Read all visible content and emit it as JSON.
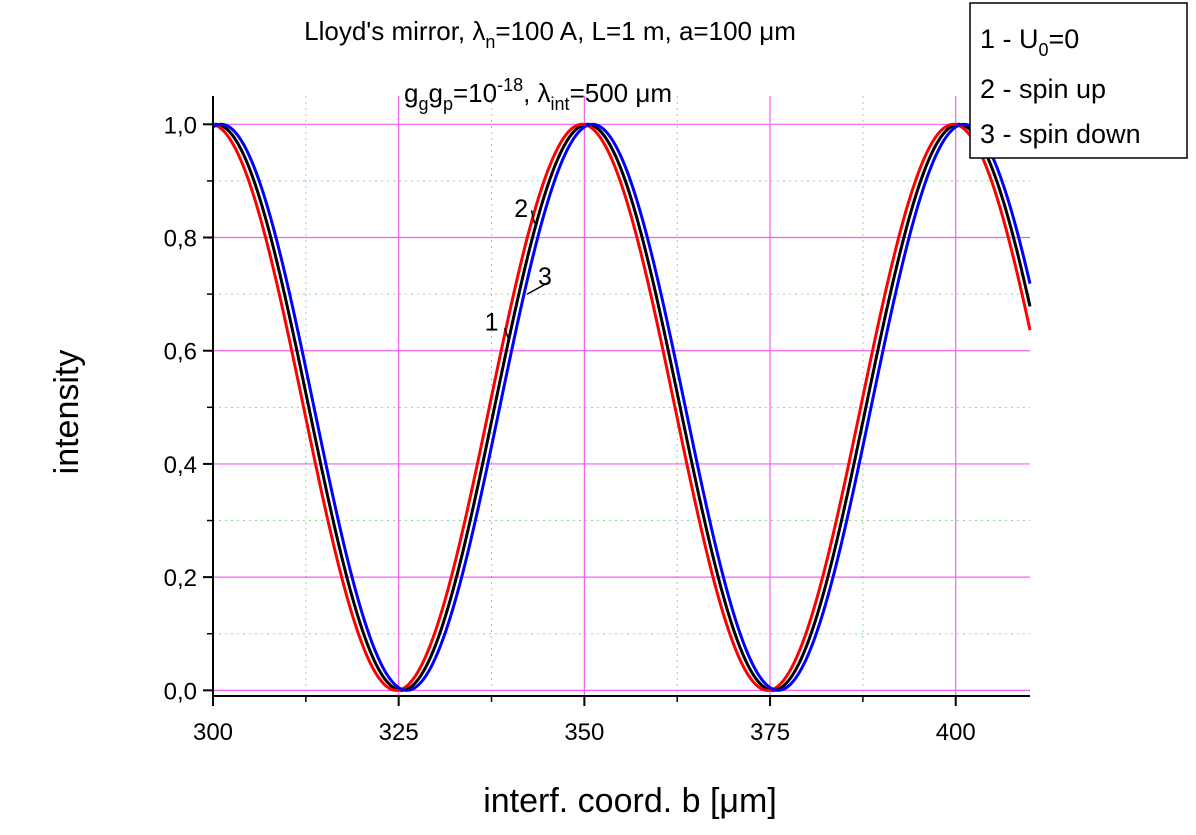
{
  "chart_data": {
    "type": "line",
    "title_line1_parts": [
      "Lloyd's mirror, λ",
      "n",
      "=100 A, L=1 m, a=100 μm"
    ],
    "title_line2_parts": [
      "g",
      "g",
      "g",
      "p",
      "=10",
      "-18",
      ", λ",
      "int",
      "=500 μm"
    ],
    "xlabel": "interf. coord. b [μm]",
    "ylabel": "intensity",
    "xlim": [
      300,
      410
    ],
    "ylim": [
      -0.01,
      1.05
    ],
    "x_major_ticks": [
      300,
      325,
      350,
      375,
      400
    ],
    "x_tick_labels": [
      "300",
      "325",
      "350",
      "375",
      "400"
    ],
    "y_major_ticks": [
      0.0,
      0.2,
      0.4,
      0.6,
      0.8,
      1.0
    ],
    "y_tick_labels": [
      "0,0",
      "0,2",
      "0,4",
      "0,6",
      "0,8",
      "1,0"
    ],
    "grid": true,
    "legend_position": "top-right",
    "legend": [
      {
        "parts": [
          "1 - U",
          "0",
          "=0"
        ]
      },
      {
        "parts": [
          "2 - spin up"
        ]
      },
      {
        "parts": [
          "3 - spin down"
        ]
      }
    ],
    "series": [
      {
        "label": "1",
        "color": "#000000",
        "period": 50,
        "peak_x": 350.4,
        "x": [
          300,
          410
        ],
        "min_y": 0,
        "max_y": 1
      },
      {
        "label": "2",
        "color": "#ff0000",
        "period": 50,
        "peak_x": 349.7,
        "x": [
          300,
          410
        ],
        "min_y": 0,
        "max_y": 1
      },
      {
        "label": "3",
        "color": "#0000ff",
        "period": 50,
        "peak_x": 351.1,
        "x": [
          300,
          410
        ],
        "min_y": 0,
        "max_y": 1
      }
    ],
    "annotations": [
      {
        "text": "2",
        "x": 341.5,
        "y": 0.85
      },
      {
        "text": "3",
        "x": 344.7,
        "y": 0.73
      },
      {
        "text": "1",
        "x": 337.5,
        "y": 0.65
      }
    ]
  }
}
